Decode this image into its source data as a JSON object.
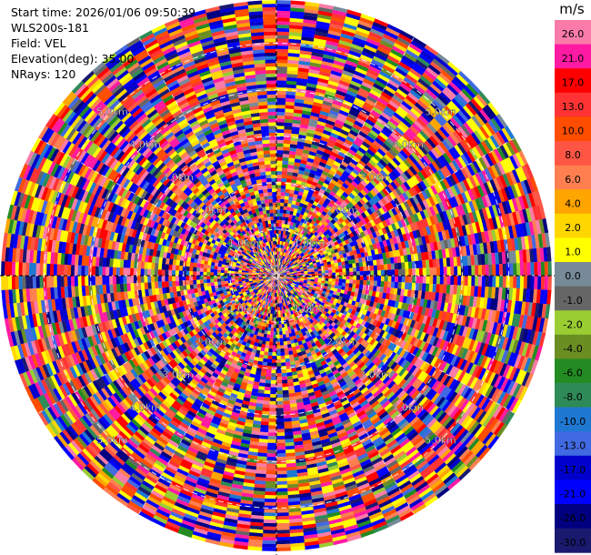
{
  "info": {
    "start_label": "Start time: ",
    "start_time": "2026/01/06 09:50:39",
    "station": "WLS200s-181",
    "field_label": "Field: ",
    "field": "VEL",
    "elevation_label": "Elevation(deg): ",
    "elevation": "35.00",
    "nrays_label": "NRays: ",
    "nrays": "120"
  },
  "colorbar": {
    "unit": "m/s",
    "colors": [
      "#fa7ba8",
      "#ff1aa3",
      "#ff0000",
      "#ff3333",
      "#ff4d00",
      "#ff5544",
      "#ff7f50",
      "#ffa500",
      "#ffd700",
      "#ffff00",
      "#768a98",
      "#666666",
      "#9acd32",
      "#6b8e23",
      "#228b22",
      "#2e8b57",
      "#1e78d2",
      "#4169e1",
      "#0000cd",
      "#0000ff",
      "#000080",
      "#191970"
    ],
    "ticks": [
      "26.0",
      "21.0",
      "17.0",
      "13.0",
      "10.0",
      "8.0",
      "6.0",
      "4.0",
      "2.0",
      "1.0",
      "0.0",
      "-1.0",
      "-2.0",
      "-4.0",
      "-6.0",
      "-8.0",
      "-10.0",
      "-13.0",
      "-17.0",
      "-21.0",
      "-26.0",
      "-30.0"
    ]
  },
  "chart_data": {
    "type": "heatmap",
    "projection": "polar (PPI)",
    "field": "VEL",
    "units": "m/s",
    "nrays": 120,
    "range_rings_km": [
      1.0,
      2.0,
      3.0,
      4.0,
      5.0
    ],
    "range_ring_labels": [
      "1.0km",
      "2.0km",
      "3.0km",
      "4.0km",
      "5.0km"
    ],
    "max_range_km": 5.95,
    "value_range": [
      -30.0,
      30.0
    ],
    "note_values": "dense, noise-dominated velocity field; individual gate values not recoverable"
  }
}
